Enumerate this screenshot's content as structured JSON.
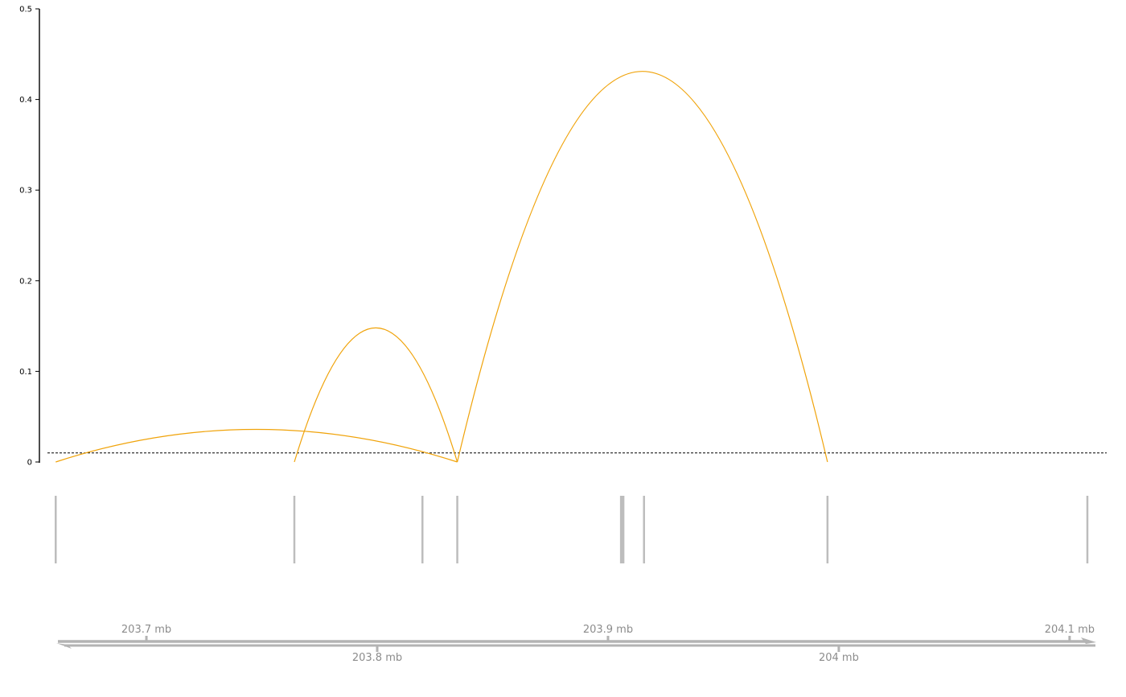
{
  "chart_data": {
    "type": "arc",
    "y_axis": {
      "range": [
        0,
        0.5
      ],
      "ticks": [
        {
          "value": 0,
          "label": "0"
        },
        {
          "value": 0.1,
          "label": "0.1"
        },
        {
          "value": 0.2,
          "label": "0.2"
        },
        {
          "value": 0.3,
          "label": "0.3"
        },
        {
          "value": 0.4,
          "label": "0.4"
        },
        {
          "value": 0.5,
          "label": "0.5"
        }
      ]
    },
    "x_axis": {
      "unit": "mb",
      "range": [
        203.6505,
        204.1105
      ],
      "ticks_above": [
        {
          "value": 203.7,
          "label": "203.7 mb"
        },
        {
          "value": 203.9,
          "label": "203.9 mb"
        },
        {
          "value": 204.1,
          "label": "204.1 mb"
        }
      ],
      "ticks_below": [
        {
          "value": 203.8,
          "label": "203.8 mb"
        },
        {
          "value": 204.0,
          "label": "204 mb"
        }
      ]
    },
    "threshold": 0.01,
    "arc_color": "#f0a30a",
    "marker_color": "#bdbdbd",
    "axis_color": "#b3b3b3",
    "arcs": [
      {
        "start": 203.6607,
        "end": 203.8347,
        "height": 0.036
      },
      {
        "start": 203.7641,
        "end": 203.8347,
        "height": 0.148
      },
      {
        "start": 203.8347,
        "end": 203.9951,
        "height": 0.431
      }
    ],
    "markers": [
      {
        "start": 203.6607,
        "end": 203.6607
      },
      {
        "start": 203.7641,
        "end": 203.7641
      },
      {
        "start": 203.8196,
        "end": 203.8196
      },
      {
        "start": 203.8347,
        "end": 203.8347
      },
      {
        "start": 203.9052,
        "end": 203.9071
      },
      {
        "start": 203.9156,
        "end": 203.9156
      },
      {
        "start": 203.9951,
        "end": 203.9951
      },
      {
        "start": 204.1077,
        "end": 204.1077
      }
    ]
  }
}
